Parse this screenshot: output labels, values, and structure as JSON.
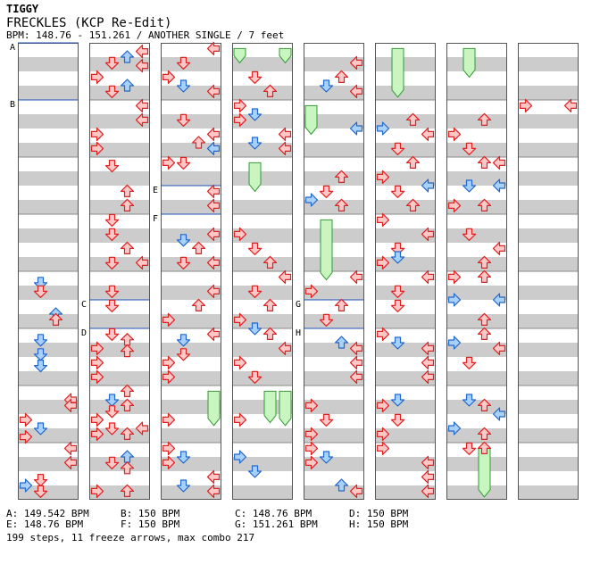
{
  "header": {
    "artist": "TIGGY",
    "title": "FRECKLES (KCP Re-Edit)",
    "meta": "BPM: 148.76 - 151.261 / ANOTHER SINGLE / 7 feet"
  },
  "colors": {
    "stripe": "#cccccc",
    "column_border": "#555555",
    "bpm_line": "#2255bb",
    "arrow_red_fill": "#ffc8c8",
    "arrow_red_stroke": "#dd2222",
    "arrow_blue_fill": "#a8d0f8",
    "arrow_blue_stroke": "#2266cc",
    "freeze_fill": "#c8f5c0",
    "freeze_stroke": "#339933"
  },
  "bpm_markers": [
    {
      "label": "A",
      "column": 0,
      "measure": 0
    },
    {
      "label": "B",
      "column": 0,
      "measure": 1
    },
    {
      "label": "C",
      "column": 1,
      "measure": 4.5
    },
    {
      "label": "D",
      "column": 1,
      "measure": 5
    },
    {
      "label": "E",
      "column": 2,
      "measure": 2.5
    },
    {
      "label": "F",
      "column": 2,
      "measure": 3
    },
    {
      "label": "G",
      "column": 4,
      "measure": 4.5
    },
    {
      "label": "H",
      "column": 4,
      "measure": 5
    }
  ],
  "legend": [
    {
      "label": "A: 149.542 BPM"
    },
    {
      "label": "B: 150 BPM"
    },
    {
      "label": "C: 148.76 BPM"
    },
    {
      "label": "D: 150 BPM"
    },
    {
      "label": "E: 148.76 BPM"
    },
    {
      "label": "F: 150 BPM"
    },
    {
      "label": "G: 151.261 BPM"
    },
    {
      "label": "H: 150 BPM"
    }
  ],
  "summary": "199 steps, 11 freeze arrows, max combo 217",
  "notes": [
    {
      "c": 0,
      "t": 4.2,
      "l": 1,
      "col": "b"
    },
    {
      "c": 0,
      "t": 4.35,
      "l": 1,
      "col": "r"
    },
    {
      "c": 0,
      "t": 4.75,
      "l": 2,
      "col": "b"
    },
    {
      "c": 0,
      "t": 4.85,
      "l": 2,
      "col": "r"
    },
    {
      "c": 0,
      "t": 5.2,
      "l": 1,
      "col": "b"
    },
    {
      "c": 0,
      "t": 5.45,
      "l": 1,
      "col": "b"
    },
    {
      "c": 0,
      "t": 5.65,
      "l": 1,
      "col": "b"
    },
    {
      "c": 0,
      "t": 6.25,
      "l": 3,
      "col": "r"
    },
    {
      "c": 0,
      "t": 6.35,
      "l": 3,
      "col": "r"
    },
    {
      "c": 0,
      "t": 6.6,
      "l": 0,
      "col": "r"
    },
    {
      "c": 0,
      "t": 6.75,
      "l": 1,
      "col": "b"
    },
    {
      "c": 0,
      "t": 6.9,
      "l": 0,
      "col": "r"
    },
    {
      "c": 0,
      "t": 7.1,
      "l": 3,
      "col": "r"
    },
    {
      "c": 0,
      "t": 7.35,
      "l": 3,
      "col": "r"
    },
    {
      "c": 0,
      "t": 7.75,
      "l": 0,
      "col": "b"
    },
    {
      "c": 0,
      "t": 7.65,
      "l": 1,
      "col": "r"
    },
    {
      "c": 0,
      "t": 7.85,
      "l": 1,
      "col": "r"
    },
    {
      "c": 1,
      "t": 0.15,
      "l": 3,
      "col": "r"
    },
    {
      "c": 1,
      "t": 0.25,
      "l": 2,
      "col": "b"
    },
    {
      "c": 1,
      "t": 0.35,
      "l": 1,
      "col": "r"
    },
    {
      "c": 1,
      "t": 0.4,
      "l": 3,
      "col": "r"
    },
    {
      "c": 1,
      "t": 0.6,
      "l": 0,
      "col": "r"
    },
    {
      "c": 1,
      "t": 0.75,
      "l": 2,
      "col": "b"
    },
    {
      "c": 1,
      "t": 0.85,
      "l": 1,
      "col": "r"
    },
    {
      "c": 1,
      "t": 1.1,
      "l": 3,
      "col": "r"
    },
    {
      "c": 1,
      "t": 1.35,
      "l": 3,
      "col": "r"
    },
    {
      "c": 1,
      "t": 1.6,
      "l": 0,
      "col": "r"
    },
    {
      "c": 1,
      "t": 1.85,
      "l": 0,
      "col": "r"
    },
    {
      "c": 1,
      "t": 2.15,
      "l": 1,
      "col": "r"
    },
    {
      "c": 1,
      "t": 2.6,
      "l": 2,
      "col": "r"
    },
    {
      "c": 1,
      "t": 2.85,
      "l": 2,
      "col": "r"
    },
    {
      "c": 1,
      "t": 3.1,
      "l": 1,
      "col": "r"
    },
    {
      "c": 1,
      "t": 3.35,
      "l": 1,
      "col": "r"
    },
    {
      "c": 1,
      "t": 3.6,
      "l": 2,
      "col": "r"
    },
    {
      "c": 1,
      "t": 3.85,
      "l": 1,
      "col": "r"
    },
    {
      "c": 1,
      "t": 3.85,
      "l": 3,
      "col": "r"
    },
    {
      "c": 1,
      "t": 4.35,
      "l": 1,
      "col": "r"
    },
    {
      "c": 1,
      "t": 4.6,
      "l": 1,
      "col": "r"
    },
    {
      "c": 1,
      "t": 5.1,
      "l": 1,
      "col": "r"
    },
    {
      "c": 1,
      "t": 5.2,
      "l": 2,
      "col": "r"
    },
    {
      "c": 1,
      "t": 5.35,
      "l": 0,
      "col": "r"
    },
    {
      "c": 1,
      "t": 5.4,
      "l": 2,
      "col": "r"
    },
    {
      "c": 1,
      "t": 5.6,
      "l": 0,
      "col": "r"
    },
    {
      "c": 1,
      "t": 5.85,
      "l": 0,
      "col": "r"
    },
    {
      "c": 1,
      "t": 6.1,
      "l": 2,
      "col": "r"
    },
    {
      "c": 1,
      "t": 6.25,
      "l": 1,
      "col": "b"
    },
    {
      "c": 1,
      "t": 6.35,
      "l": 2,
      "col": "r"
    },
    {
      "c": 1,
      "t": 6.45,
      "l": 1,
      "col": "r"
    },
    {
      "c": 1,
      "t": 6.6,
      "l": 0,
      "col": "r"
    },
    {
      "c": 1,
      "t": 6.75,
      "l": 1,
      "col": "r"
    },
    {
      "c": 1,
      "t": 6.75,
      "l": 3,
      "col": "r"
    },
    {
      "c": 1,
      "t": 6.85,
      "l": 0,
      "col": "r"
    },
    {
      "c": 1,
      "t": 6.85,
      "l": 2,
      "col": "r"
    },
    {
      "c": 1,
      "t": 7.25,
      "l": 2,
      "col": "b"
    },
    {
      "c": 1,
      "t": 7.35,
      "l": 1,
      "col": "r"
    },
    {
      "c": 1,
      "t": 7.45,
      "l": 2,
      "col": "r"
    },
    {
      "c": 1,
      "t": 7.85,
      "l": 0,
      "col": "r"
    },
    {
      "c": 1,
      "t": 7.85,
      "l": 2,
      "col": "r"
    },
    {
      "c": 2,
      "t": 0.1,
      "l": 3,
      "col": "r"
    },
    {
      "c": 2,
      "t": 0.35,
      "l": 1,
      "col": "r"
    },
    {
      "c": 2,
      "t": 0.6,
      "l": 0,
      "col": "r"
    },
    {
      "c": 2,
      "t": 0.75,
      "l": 1,
      "col": "b"
    },
    {
      "c": 2,
      "t": 0.85,
      "l": 3,
      "col": "r"
    },
    {
      "c": 2,
      "t": 1.35,
      "l": 1,
      "col": "r"
    },
    {
      "c": 2,
      "t": 1.6,
      "l": 3,
      "col": "r"
    },
    {
      "c": 2,
      "t": 1.75,
      "l": 2,
      "col": "r"
    },
    {
      "c": 2,
      "t": 1.85,
      "l": 3,
      "col": "b"
    },
    {
      "c": 2,
      "t": 2.1,
      "l": 0,
      "col": "r"
    },
    {
      "c": 2,
      "t": 2.1,
      "l": 1,
      "col": "r"
    },
    {
      "c": 2,
      "t": 2.6,
      "l": 3,
      "col": "r"
    },
    {
      "c": 2,
      "t": 2.85,
      "l": 3,
      "col": "r"
    },
    {
      "c": 2,
      "t": 3.35,
      "l": 3,
      "col": "r"
    },
    {
      "c": 2,
      "t": 3.45,
      "l": 1,
      "col": "b"
    },
    {
      "c": 2,
      "t": 3.6,
      "l": 2,
      "col": "r"
    },
    {
      "c": 2,
      "t": 3.85,
      "l": 1,
      "col": "r"
    },
    {
      "c": 2,
      "t": 3.85,
      "l": 3,
      "col": "r"
    },
    {
      "c": 2,
      "t": 4.35,
      "l": 3,
      "col": "r"
    },
    {
      "c": 2,
      "t": 4.6,
      "l": 2,
      "col": "r"
    },
    {
      "c": 2,
      "t": 4.85,
      "l": 0,
      "col": "r"
    },
    {
      "c": 2,
      "t": 5.1,
      "l": 3,
      "col": "r"
    },
    {
      "c": 2,
      "t": 5.2,
      "l": 1,
      "col": "b"
    },
    {
      "c": 2,
      "t": 5.45,
      "l": 1,
      "col": "r"
    },
    {
      "c": 2,
      "t": 5.6,
      "l": 0,
      "col": "r"
    },
    {
      "c": 2,
      "t": 5.85,
      "l": 0,
      "col": "r"
    },
    {
      "c": 2,
      "t": 6.6,
      "l": 0,
      "col": "r"
    },
    {
      "c": 2,
      "t": 7.1,
      "l": 0,
      "col": "r"
    },
    {
      "c": 2,
      "t": 7.25,
      "l": 1,
      "col": "b"
    },
    {
      "c": 2,
      "t": 7.35,
      "l": 0,
      "col": "r"
    },
    {
      "c": 2,
      "t": 7.6,
      "l": 3,
      "col": "r"
    },
    {
      "c": 2,
      "t": 7.75,
      "l": 1,
      "col": "b"
    },
    {
      "c": 2,
      "t": 7.85,
      "l": 3,
      "col": "r"
    },
    {
      "c": 3,
      "t": 0.6,
      "l": 1,
      "col": "r"
    },
    {
      "c": 3,
      "t": 0.85,
      "l": 2,
      "col": "r"
    },
    {
      "c": 3,
      "t": 1.1,
      "l": 0,
      "col": "r"
    },
    {
      "c": 3,
      "t": 1.25,
      "l": 1,
      "col": "b"
    },
    {
      "c": 3,
      "t": 1.35,
      "l": 0,
      "col": "r"
    },
    {
      "c": 3,
      "t": 1.6,
      "l": 3,
      "col": "r"
    },
    {
      "c": 3,
      "t": 1.75,
      "l": 1,
      "col": "b"
    },
    {
      "c": 3,
      "t": 1.85,
      "l": 3,
      "col": "r"
    },
    {
      "c": 3,
      "t": 3.35,
      "l": 0,
      "col": "r"
    },
    {
      "c": 3,
      "t": 3.6,
      "l": 1,
      "col": "r"
    },
    {
      "c": 3,
      "t": 3.85,
      "l": 2,
      "col": "r"
    },
    {
      "c": 3,
      "t": 4.1,
      "l": 3,
      "col": "r"
    },
    {
      "c": 3,
      "t": 4.35,
      "l": 1,
      "col": "r"
    },
    {
      "c": 3,
      "t": 4.6,
      "l": 2,
      "col": "r"
    },
    {
      "c": 3,
      "t": 4.85,
      "l": 0,
      "col": "r"
    },
    {
      "c": 3,
      "t": 5.0,
      "l": 1,
      "col": "b"
    },
    {
      "c": 3,
      "t": 5.1,
      "l": 2,
      "col": "r"
    },
    {
      "c": 3,
      "t": 5.35,
      "l": 3,
      "col": "r"
    },
    {
      "c": 3,
      "t": 5.6,
      "l": 0,
      "col": "r"
    },
    {
      "c": 3,
      "t": 5.85,
      "l": 1,
      "col": "r"
    },
    {
      "c": 3,
      "t": 6.6,
      "l": 0,
      "col": "r"
    },
    {
      "c": 3,
      "t": 7.25,
      "l": 0,
      "col": "b"
    },
    {
      "c": 3,
      "t": 7.5,
      "l": 1,
      "col": "b"
    },
    {
      "c": 4,
      "t": 0.35,
      "l": 3,
      "col": "r"
    },
    {
      "c": 4,
      "t": 0.6,
      "l": 2,
      "col": "r"
    },
    {
      "c": 4,
      "t": 0.75,
      "l": 1,
      "col": "b"
    },
    {
      "c": 4,
      "t": 0.85,
      "l": 3,
      "col": "r"
    },
    {
      "c": 4,
      "t": 1.5,
      "l": 3,
      "col": "b"
    },
    {
      "c": 4,
      "t": 2.35,
      "l": 2,
      "col": "r"
    },
    {
      "c": 4,
      "t": 2.6,
      "l": 1,
      "col": "r"
    },
    {
      "c": 4,
      "t": 2.75,
      "l": 0,
      "col": "b"
    },
    {
      "c": 4,
      "t": 2.85,
      "l": 2,
      "col": "r"
    },
    {
      "c": 4,
      "t": 4.1,
      "l": 3,
      "col": "r"
    },
    {
      "c": 4,
      "t": 4.35,
      "l": 0,
      "col": "r"
    },
    {
      "c": 4,
      "t": 4.6,
      "l": 2,
      "col": "r"
    },
    {
      "c": 4,
      "t": 4.85,
      "l": 1,
      "col": "r"
    },
    {
      "c": 4,
      "t": 5.25,
      "l": 2,
      "col": "b"
    },
    {
      "c": 4,
      "t": 5.35,
      "l": 3,
      "col": "r"
    },
    {
      "c": 4,
      "t": 5.6,
      "l": 3,
      "col": "r"
    },
    {
      "c": 4,
      "t": 5.85,
      "l": 3,
      "col": "r"
    },
    {
      "c": 4,
      "t": 6.35,
      "l": 0,
      "col": "r"
    },
    {
      "c": 4,
      "t": 6.6,
      "l": 1,
      "col": "r"
    },
    {
      "c": 4,
      "t": 6.85,
      "l": 0,
      "col": "r"
    },
    {
      "c": 4,
      "t": 7.1,
      "l": 0,
      "col": "r"
    },
    {
      "c": 4,
      "t": 7.25,
      "l": 1,
      "col": "b"
    },
    {
      "c": 4,
      "t": 7.35,
      "l": 0,
      "col": "r"
    },
    {
      "c": 4,
      "t": 7.75,
      "l": 2,
      "col": "b"
    },
    {
      "c": 4,
      "t": 7.85,
      "l": 3,
      "col": "r"
    },
    {
      "c": 5,
      "t": 1.35,
      "l": 2,
      "col": "r"
    },
    {
      "c": 5,
      "t": 1.5,
      "l": 0,
      "col": "b"
    },
    {
      "c": 5,
      "t": 1.6,
      "l": 3,
      "col": "r"
    },
    {
      "c": 5,
      "t": 1.85,
      "l": 1,
      "col": "r"
    },
    {
      "c": 5,
      "t": 2.1,
      "l": 2,
      "col": "r"
    },
    {
      "c": 5,
      "t": 2.35,
      "l": 0,
      "col": "r"
    },
    {
      "c": 5,
      "t": 2.5,
      "l": 3,
      "col": "b"
    },
    {
      "c": 5,
      "t": 2.6,
      "l": 1,
      "col": "r"
    },
    {
      "c": 5,
      "t": 2.85,
      "l": 2,
      "col": "r"
    },
    {
      "c": 5,
      "t": 3.1,
      "l": 0,
      "col": "r"
    },
    {
      "c": 5,
      "t": 3.35,
      "l": 3,
      "col": "r"
    },
    {
      "c": 5,
      "t": 3.6,
      "l": 1,
      "col": "r"
    },
    {
      "c": 5,
      "t": 3.75,
      "l": 1,
      "col": "b"
    },
    {
      "c": 5,
      "t": 3.85,
      "l": 0,
      "col": "r"
    },
    {
      "c": 5,
      "t": 4.1,
      "l": 3,
      "col": "r"
    },
    {
      "c": 5,
      "t": 4.35,
      "l": 1,
      "col": "r"
    },
    {
      "c": 5,
      "t": 4.6,
      "l": 1,
      "col": "r"
    },
    {
      "c": 5,
      "t": 5.1,
      "l": 0,
      "col": "r"
    },
    {
      "c": 5,
      "t": 5.25,
      "l": 1,
      "col": "b"
    },
    {
      "c": 5,
      "t": 5.35,
      "l": 3,
      "col": "r"
    },
    {
      "c": 5,
      "t": 5.6,
      "l": 3,
      "col": "r"
    },
    {
      "c": 5,
      "t": 5.85,
      "l": 3,
      "col": "r"
    },
    {
      "c": 5,
      "t": 6.25,
      "l": 1,
      "col": "b"
    },
    {
      "c": 5,
      "t": 6.35,
      "l": 0,
      "col": "r"
    },
    {
      "c": 5,
      "t": 6.6,
      "l": 1,
      "col": "r"
    },
    {
      "c": 5,
      "t": 6.85,
      "l": 0,
      "col": "r"
    },
    {
      "c": 5,
      "t": 7.1,
      "l": 0,
      "col": "r"
    },
    {
      "c": 5,
      "t": 7.35,
      "l": 3,
      "col": "r"
    },
    {
      "c": 5,
      "t": 7.6,
      "l": 3,
      "col": "r"
    },
    {
      "c": 5,
      "t": 7.85,
      "l": 3,
      "col": "r"
    },
    {
      "c": 6,
      "t": 1.35,
      "l": 2,
      "col": "r"
    },
    {
      "c": 6,
      "t": 1.6,
      "l": 0,
      "col": "r"
    },
    {
      "c": 6,
      "t": 1.85,
      "l": 1,
      "col": "r"
    },
    {
      "c": 6,
      "t": 2.1,
      "l": 2,
      "col": "r"
    },
    {
      "c": 6,
      "t": 2.1,
      "l": 3,
      "col": "r"
    },
    {
      "c": 6,
      "t": 2.5,
      "l": 1,
      "col": "b"
    },
    {
      "c": 6,
      "t": 2.5,
      "l": 3,
      "col": "b"
    },
    {
      "c": 6,
      "t": 2.85,
      "l": 0,
      "col": "r"
    },
    {
      "c": 6,
      "t": 2.85,
      "l": 2,
      "col": "r"
    },
    {
      "c": 6,
      "t": 3.35,
      "l": 1,
      "col": "r"
    },
    {
      "c": 6,
      "t": 3.6,
      "l": 3,
      "col": "r"
    },
    {
      "c": 6,
      "t": 3.85,
      "l": 2,
      "col": "r"
    },
    {
      "c": 6,
      "t": 4.1,
      "l": 0,
      "col": "r"
    },
    {
      "c": 6,
      "t": 4.1,
      "l": 2,
      "col": "r"
    },
    {
      "c": 6,
      "t": 4.5,
      "l": 0,
      "col": "b"
    },
    {
      "c": 6,
      "t": 4.5,
      "l": 3,
      "col": "b"
    },
    {
      "c": 6,
      "t": 4.85,
      "l": 2,
      "col": "r"
    },
    {
      "c": 6,
      "t": 5.1,
      "l": 2,
      "col": "r"
    },
    {
      "c": 6,
      "t": 5.25,
      "l": 0,
      "col": "b"
    },
    {
      "c": 6,
      "t": 5.35,
      "l": 3,
      "col": "r"
    },
    {
      "c": 6,
      "t": 5.6,
      "l": 1,
      "col": "r"
    },
    {
      "c": 6,
      "t": 6.25,
      "l": 1,
      "col": "b"
    },
    {
      "c": 6,
      "t": 6.35,
      "l": 2,
      "col": "r"
    },
    {
      "c": 6,
      "t": 6.5,
      "l": 3,
      "col": "b"
    },
    {
      "c": 6,
      "t": 6.75,
      "l": 0,
      "col": "b"
    },
    {
      "c": 6,
      "t": 6.85,
      "l": 2,
      "col": "r"
    },
    {
      "c": 6,
      "t": 7.1,
      "l": 1,
      "col": "r"
    },
    {
      "c": 6,
      "t": 7.1,
      "l": 2,
      "col": "r"
    },
    {
      "c": 7,
      "t": 1.1,
      "l": 0,
      "col": "r"
    },
    {
      "c": 7,
      "t": 1.1,
      "l": 3,
      "col": "r"
    }
  ],
  "freezes": [
    {
      "c": 3,
      "t0": 0.1,
      "t1": 0.35,
      "l": 0
    },
    {
      "c": 3,
      "t0": 0.1,
      "t1": 0.35,
      "l": 3
    },
    {
      "c": 3,
      "t0": 2.1,
      "t1": 2.6,
      "l": 1
    },
    {
      "c": 3,
      "t0": 6.1,
      "t1": 6.65,
      "l": 2
    },
    {
      "c": 3,
      "t0": 6.1,
      "t1": 6.7,
      "l": 3
    },
    {
      "c": 4,
      "t0": 1.1,
      "t1": 1.6,
      "l": 0
    },
    {
      "c": 4,
      "t0": 3.1,
      "t1": 4.15,
      "l": 1
    },
    {
      "c": 5,
      "t0": 0.1,
      "t1": 0.95,
      "l": 1
    },
    {
      "c": 6,
      "t0": 0.1,
      "t1": 0.6,
      "l": 1
    },
    {
      "c": 2,
      "t0": 6.1,
      "t1": 6.7,
      "l": 3
    },
    {
      "c": 6,
      "t0": 7.1,
      "t1": 7.95,
      "l": 2
    }
  ]
}
